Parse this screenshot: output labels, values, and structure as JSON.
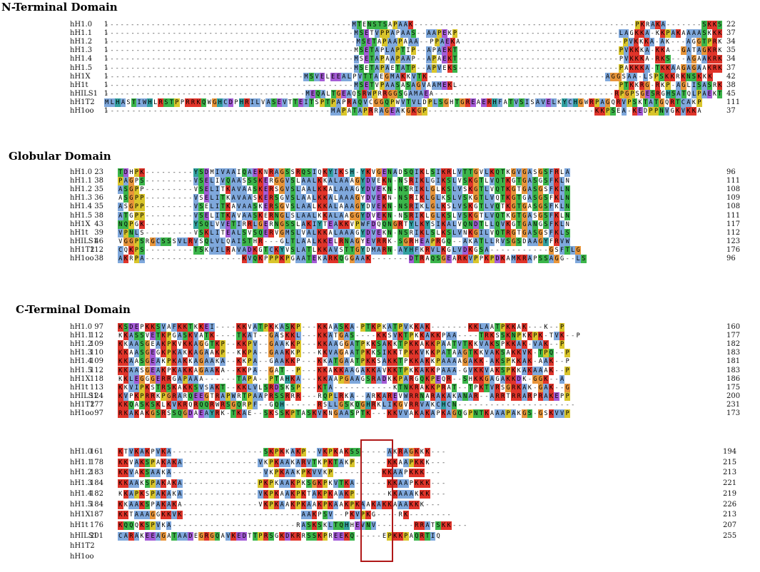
{
  "sections": [
    {
      "id": "nterm",
      "title": "N-Terminal Domain",
      "rows": [
        {
          "name": "hH1.0",
          "start": "1",
          "end": "22",
          "seq": "------------------------------------------------MTENSTSAPAAK-------------------------------------------PKRAKA-------SKKS"
        },
        {
          "name": "hH1.1",
          "start": "1",
          "end": "37",
          "seq": "------------------------------------------------MSETVPPAPAAS--AAPEKP-------------------------------LAGKKA-KKPAKAAAASKKK"
        },
        {
          "name": "hH1.2",
          "start": "1",
          "end": "34",
          "seq": "------------------------------------------------MSETAPAAPAAA--PPAEKA-------------------------------PVKKKA-AK---AGGTPRK"
        },
        {
          "name": "hH1.3",
          "start": "1",
          "end": "35",
          "seq": "------------------------------------------------MSETAPLAPTIP--APAEKT-------------------------------PVKKKA-KKA--GATAGKRK"
        },
        {
          "name": "hH1.4",
          "start": "1",
          "end": "34",
          "seq": "------------------------------------------------MSETAPAAPAAP--APAEKT-------------------------------PVKKKA-RKS---AGAAKRK"
        },
        {
          "name": "hH1.5",
          "start": "1",
          "end": "37",
          "seq": "------------------------------------------------MSETAPAETATP--APVEKS-------------------------------PAKKKA-TKKAAGAGAAKRK"
        },
        {
          "name": "hH1X",
          "start": "1",
          "end": "42",
          "seq": "-------------------------------------MSVELEEALPVTTAEGMAKKVTK---------------------------------AGGSAA-LSPSKKRKNSKKK"
        },
        {
          "name": "hH1t",
          "start": "1",
          "end": "38",
          "seq": "------------------------------------------------MSETVPAASASAGVAAMEKL-------------------------------PTKKRG-RKP-AGLISASRK"
        },
        {
          "name": "hHILS1",
          "start": "1",
          "end": "45",
          "seq": "---------------------------------------MEQALTGEAQSRWPRRGGSGAMAEA-----------------------------------RPGPSGESRGHSATQLPAEKT"
        },
        {
          "name": "hH1T2",
          "start": "1",
          "end": "111",
          "seq": "MLHASTIWHLRSTPPRRKQWGHCDPHRILVASEVTTEITSPTPAPRAQVCGGQPWVTVLDPLSGHTGREAERHFATVSISAVELKYCHGWRPAGQRVPSKTATGQRTCAKP"
        },
        {
          "name": "hH1oo",
          "start": "1",
          "end": "37",
          "seq": "------------------------------------------MAPATAPRRAGEAKGKGP-------------------------------KKPSEA-KEDPPNVGKVKKA"
        }
      ]
    },
    {
      "id": "glob",
      "title": "Globular Domain",
      "rows": [
        {
          "name": "hH1.0",
          "start": "23",
          "end": "96",
          "seq": "TDHPK---------YSDMIVAAIQAEKNRAGSSRQSIQKYIKSH-YKVGENADSQIKLSIKRLVTTGVLKQTKGVGASGSFRLA"
        },
        {
          "name": "hH1.1",
          "start": "38",
          "end": "111",
          "seq": "PAGPS---------VSELIVQAASSSKERGGVSLAALKKALAAAGYDVEKN-NSRIKLGIKSLVSKGTLVQTKGTGASGSFKLN"
        },
        {
          "name": "hH1.2",
          "start": "35",
          "end": "108",
          "seq": "ASGPP---------VSELITKAVAASKERSGVSLAALKKALAAAGYDVEKN-NSRIKLGLKSLVSKGTLVQTKGTGASGSFKLN"
        },
        {
          "name": "hH1.3",
          "start": "36",
          "end": "109",
          "seq": "ASGPP---------VSELITKAVAASKERSGVSLAALKKALAAAGYDVEKN-NSRIKLGLKSLVSKGTLVQTKGTGASGSFKLN"
        },
        {
          "name": "hH1.4",
          "start": "35",
          "end": "108",
          "seq": "ASGPP---------VSELITKAVAASKERSGVSLAALKKALAAAGYDVEKN-NSRIKLGLKSLVSKGTLVQTKGTGASGSFKLN"
        },
        {
          "name": "hH1.5",
          "start": "38",
          "end": "111",
          "seq": "ATGPP---------VSELITKAVAASKERNGLSLAALKKALAAGGYDVEKN-NSRIKLGLKSLVSKGTLVQTKGTGASGSFKLN"
        },
        {
          "name": "hH1X",
          "start": "43",
          "end": "117",
          "seq": "NQPGK---------YSQLVVETIRRLGERNGSSLAKIYTEAKKVPWFDQQNGRTYLKYSIKALVQNDTLLQVKGTGANGSFKLN"
        },
        {
          "name": "hH1t",
          "start": "39",
          "end": "112",
          "seq": "VPNLS---------VSKLITEALSVSQERVGMSLVALKKALAAAGYDVEKN-NSRIKLSLKSLVNKGILVQTRGTGASGSFKLS"
        },
        {
          "name": "hHILS1",
          "start": "46",
          "end": "123",
          "seq": "VGGPSRGCSSSVLRVSQLVLQAISTHR---GLTLAALKKELRNAGYEVRRK-SGRHEAPRGQ--AKATLLRVSGSDAAGYFRVW"
        },
        {
          "name": "hH1T2",
          "start": "112",
          "end": "176",
          "seq": "CQKPS---------TSKVILRAVADKGTCKYVSLATLKKAVSTTGYDMARN-AYHFKRVLKGLVDKGSA-----------GSFTLG"
        },
        {
          "name": "hH1oo",
          "start": "38",
          "end": "96",
          "seq": "AKRPA------------------KVQKPPPKPGAATEKARKQGGAAK-------DTRAQSGEARKVPPKPDKAMKRAPSSAGG--LS"
        }
      ]
    },
    {
      "id": "cterm1",
      "title": "C-Terminal Domain",
      "rows": [
        {
          "name": "hH1.0",
          "start": "97",
          "end": "160",
          "seq": "KSDEPKKSVAFKKTKKEI----KKVATPKKASKP---KKAASKA-PTKPKATPVKKAK-------KKLAATPKKAK---K--P"
        },
        {
          "name": "hH1.1",
          "start": "112",
          "end": "177",
          "seq": "KKASSVETKPGASKVATK----TKAT--GASKKL---KKATGAS----KKSVKTPKKAKKPAA----TRKSSKNPKKPK-TVK--P"
        },
        {
          "name": "hH1.2",
          "start": "109",
          "end": "182",
          "seq": "KKAASGEAKPKVKKAGGTKP--KKPV--GAAKKP---KKAAGGATPKKSAKKTPKKAKKPAATVTKKVAKSPKKAK-VAK--P"
        },
        {
          "name": "hH1.3",
          "start": "110",
          "end": "183",
          "seq": "KKAASGEGKPKAKKAGAAKP--KKPA--GAAKKP---KKVAGAATPKKSIKKTPKKVKKPATAAGTKKVAKSAKKVK-TPQ--P"
        },
        {
          "name": "hH1.4",
          "start": "109",
          "end": "181",
          "seq": "KKAASGEAKPKAKKAGAAKA--KKPA--GAAKKP---KKATGAATPKKSAKKTPKKAKKPAAAAGAKK-AKSPKKAK-AAK--P"
        },
        {
          "name": "hH1.5",
          "start": "112",
          "end": "183",
          "seq": "KKAASGEAKPKAKKAGAAKA--KKPA--GAT--P---KKAKKAAGAKKAVKKTPKKAKKPAAA-GVKKVAKSPKKAKAAAK--P"
        },
        {
          "name": "hH1X",
          "start": "118",
          "end": "186",
          "seq": "KKLEGGGERRGAPAAA------TAPA--PTAHKA---KKAAPGAAGSRADKKPARGQKPEQR--SHKKGAGAKKDK-GGK--A"
        },
        {
          "name": "hH1t",
          "start": "113",
          "end": "175",
          "seq": "KKVIPKSTRSKAKKSVSAKT--KKLVLSRDSKSP---KTA-----------KTNKRAKKPRAT--TPKTVRSGRKAK-GAK--G"
        },
        {
          "name": "hHILS1",
          "start": "124",
          "end": "200",
          "seq": "KVPKPRRKPGRARQEEGTRAPWRTPAAPRSSRRR---RQPLRKA--ARKAREVWRRNARAKAKANAR--ARRTRRARPRAKEPP"
        },
        {
          "name": "hH1T2",
          "start": "177",
          "end": "231",
          "seq": "KKQASKSKLKVKRQRQQRWRSGQRPF--GQH------RSLLGSKQGHRKLIKGVRRVAKCHCN----------------------"
        },
        {
          "name": "hH1oo",
          "start": "97",
          "end": "173",
          "seq": "RKAKAKGSRSSQGDAEAYRK-TKAE--SKSSKPTASKVKNGAASPTK---KKVVAKAKAPKAGQGPNTKAAAPAKGS-GSKVVP"
        }
      ]
    },
    {
      "id": "cterm2",
      "title": "",
      "rows": [
        {
          "name": "hH1.0",
          "start": "161",
          "end": "194",
          "seq": "KTVKAKPVKA-----------------SKPKKAKP--VKPKAKSS-----AKRAGKKK---"
        },
        {
          "name": "hH1.1",
          "start": "178",
          "end": "215",
          "seq": "KKVAKSPAKAKA--------------VKPKAAKARVTKPKTAKP------KKAAPKKK---"
        },
        {
          "name": "hH1.2",
          "start": "183",
          "end": "213",
          "seq": "KKVAKSAAKA-----------------VKPKAAKPKVVKP---------KKAAPKKK---"
        },
        {
          "name": "hH1.3",
          "start": "184",
          "end": "221",
          "seq": "KKAAKSPAKAKA--------------PKPKAAKPKSGKPKVTKA------KKAAPKKK---"
        },
        {
          "name": "hH1.4",
          "start": "182",
          "end": "219",
          "seq": "KKAPKSPAKAKA--------------VKPKAAKPKTAKPKAAKP------KKAAAKKK---"
        },
        {
          "name": "hH1.5",
          "start": "184",
          "end": "226",
          "seq": "KKAAKSPAKAKA--------------VKPKAAKPKAAKPKAAKPKAAKAKKAAAKKK---"
        },
        {
          "name": "hH1X",
          "start": "187",
          "end": "213",
          "seq": "KKTAAAGGKKVK----------------------AAKPSV--PKVPKG----RK--------"
        },
        {
          "name": "hH1t",
          "start": "176",
          "end": "207",
          "seq": "KQQQKSPVKA-----------------------RASKSKLTQHHEVNV-------RRATSKK---"
        },
        {
          "name": "hHILS1",
          "start": "201",
          "end": "255",
          "seq": "CARAKEEAGATAADEGRGQAVKEDTTPRSGKDKRRSSKPREEKQ-----EPKKPAQRTIQ"
        },
        {
          "name": "hH1T2",
          "start": "",
          "end": "",
          "seq": ""
        },
        {
          "name": "hH1oo",
          "start": "",
          "end": "",
          "seq": ""
        }
      ]
    }
  ],
  "legend_colors": {
    "K": "#e0342a",
    "R": "#e0342a",
    "H": "#32a0a0",
    "D": "#a45bd6",
    "E": "#a45bd6",
    "A": "#7fa8dc",
    "I": "#7fa8dc",
    "L": "#7fa8dc",
    "M": "#7fa8dc",
    "F": "#7fa8dc",
    "W": "#7fa8dc",
    "V": "#7fa8dc",
    "C": "#7fa8dc",
    "G": "#e8953a",
    "P": "#d9c52b",
    "S": "#3bb54a",
    "T": "#3bb54a",
    "N": "#3bb54a",
    "Q": "#3bb54a",
    "Y": "#32a0a0"
  }
}
